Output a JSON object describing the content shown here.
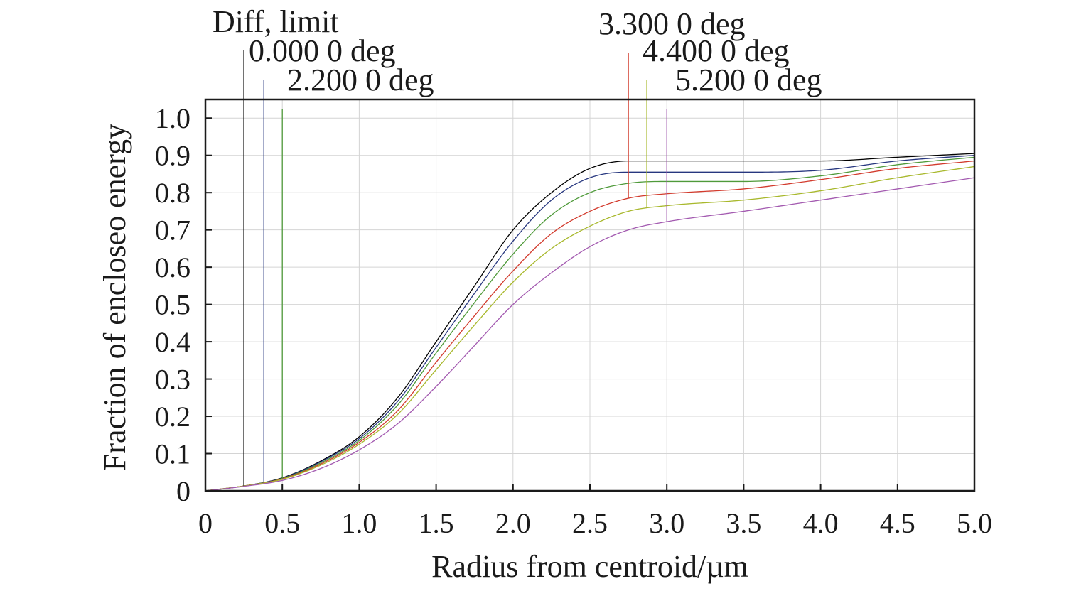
{
  "chart_data": {
    "type": "line",
    "title": "",
    "xlabel": "Radius from centroid/µm",
    "ylabel": "Fraction of encloseo energy",
    "xlim": [
      0,
      5.0
    ],
    "ylim": [
      0,
      1.05
    ],
    "xticks": [
      0,
      0.5,
      1.0,
      1.5,
      2.0,
      2.5,
      3.0,
      3.5,
      4.0,
      4.5,
      5.0
    ],
    "xtick_labels": [
      "0",
      "0.5",
      "1.0",
      "1.5",
      "2.0",
      "2.5",
      "3.0",
      "3.5",
      "4.0",
      "4.5",
      "5.0"
    ],
    "yticks": [
      0,
      0.1,
      0.2,
      0.3,
      0.4,
      0.5,
      0.6,
      0.7,
      0.8,
      0.9,
      1.0
    ],
    "ytick_labels": [
      "0",
      "0.1",
      "0.2",
      "0.3",
      "0.4",
      "0.5",
      "0.6",
      "0.7",
      "0.8",
      "0.9",
      "1.0"
    ],
    "grid": true,
    "legend": "labels above plot with leader lines",
    "series": [
      {
        "name": "Diff, limit",
        "color": "#000000",
        "marker_x": 0.25,
        "x": [
          0,
          0.25,
          0.5,
          0.75,
          1.0,
          1.25,
          1.5,
          1.75,
          2.0,
          2.25,
          2.5,
          2.75,
          3.0,
          3.5,
          4.0,
          4.5,
          5.0
        ],
        "y": [
          0,
          0.013,
          0.035,
          0.08,
          0.145,
          0.25,
          0.4,
          0.55,
          0.7,
          0.8,
          0.865,
          0.885,
          0.885,
          0.885,
          0.885,
          0.895,
          0.905
        ]
      },
      {
        "name": "0.000 0 deg",
        "color": "#27377f",
        "marker_x": 0.38,
        "x": [
          0,
          0.25,
          0.5,
          0.75,
          1.0,
          1.25,
          1.5,
          1.75,
          2.0,
          2.25,
          2.5,
          2.75,
          3.0,
          3.5,
          4.0,
          4.5,
          5.0
        ],
        "y": [
          0,
          0.013,
          0.034,
          0.078,
          0.14,
          0.24,
          0.385,
          0.53,
          0.67,
          0.78,
          0.84,
          0.855,
          0.855,
          0.855,
          0.86,
          0.885,
          0.9
        ]
      },
      {
        "name": "2.200 0 deg",
        "color": "#4f9a3a",
        "marker_x": 0.5,
        "x": [
          0,
          0.25,
          0.5,
          0.75,
          1.0,
          1.25,
          1.5,
          1.75,
          2.0,
          2.25,
          2.5,
          2.75,
          3.0,
          3.5,
          4.0,
          4.5,
          5.0
        ],
        "y": [
          0,
          0.013,
          0.033,
          0.075,
          0.135,
          0.23,
          0.37,
          0.505,
          0.635,
          0.74,
          0.8,
          0.825,
          0.83,
          0.83,
          0.845,
          0.875,
          0.895
        ]
      },
      {
        "name": "3.300 0 deg",
        "color": "#d23b2d",
        "marker_x": 2.75,
        "x": [
          0,
          0.25,
          0.5,
          0.75,
          1.0,
          1.25,
          1.5,
          1.75,
          2.0,
          2.25,
          2.5,
          2.75,
          3.0,
          3.5,
          4.0,
          4.5,
          5.0
        ],
        "y": [
          0,
          0.013,
          0.032,
          0.072,
          0.13,
          0.215,
          0.345,
          0.47,
          0.59,
          0.69,
          0.75,
          0.785,
          0.797,
          0.81,
          0.835,
          0.865,
          0.885
        ]
      },
      {
        "name": "4.400 0 deg",
        "color": "#a8b82c",
        "marker_x": 2.87,
        "x": [
          0,
          0.25,
          0.5,
          0.75,
          1.0,
          1.25,
          1.5,
          1.75,
          2.0,
          2.25,
          2.5,
          2.75,
          3.0,
          3.5,
          4.0,
          4.5,
          5.0
        ],
        "y": [
          0,
          0.013,
          0.031,
          0.069,
          0.125,
          0.205,
          0.325,
          0.445,
          0.56,
          0.65,
          0.71,
          0.75,
          0.765,
          0.78,
          0.805,
          0.84,
          0.87
        ]
      },
      {
        "name": "5.200 0 deg",
        "color": "#a35ab0",
        "marker_x": 3.0,
        "x": [
          0,
          0.25,
          0.5,
          0.75,
          1.0,
          1.25,
          1.5,
          1.75,
          2.0,
          2.25,
          2.5,
          2.75,
          3.0,
          3.5,
          4.0,
          4.5,
          5.0
        ],
        "y": [
          0,
          0.012,
          0.028,
          0.06,
          0.11,
          0.18,
          0.28,
          0.39,
          0.5,
          0.585,
          0.655,
          0.7,
          0.722,
          0.75,
          0.78,
          0.81,
          0.84
        ]
      }
    ]
  }
}
